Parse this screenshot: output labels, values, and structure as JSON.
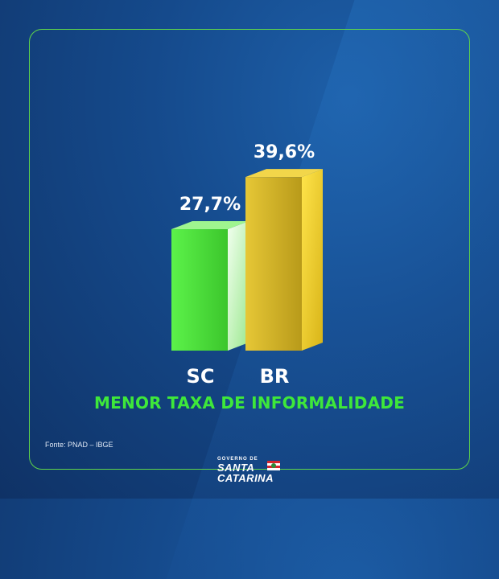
{
  "chart_data": {
    "type": "bar",
    "categories": [
      "SC",
      "BR"
    ],
    "values": [
      27.7,
      39.6
    ],
    "value_labels": [
      "27,7%",
      "39,6%"
    ],
    "title": "MENOR TAXA DE INFORMALIDADE",
    "ylim": [
      0,
      40
    ],
    "grid": false,
    "legend": "none",
    "colors": [
      "#4de83a",
      "#e6c21e"
    ]
  },
  "source": "Fonte: PNAD – IBGE",
  "logo": {
    "line1": "GOVERNO DE",
    "line2": "SANTA",
    "line3": "CATARINA"
  },
  "colors": {
    "accent": "#3ee83a",
    "background": "#154a8c"
  }
}
